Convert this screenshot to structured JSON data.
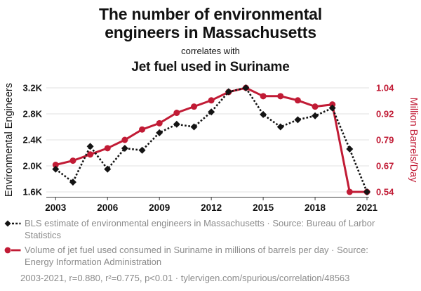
{
  "header": {
    "title": "The number of environmental\nengineers in Massachusetts",
    "connector": "correlates with",
    "subtitle": "Jet fuel used in Suriname"
  },
  "colors": {
    "accent_red": "#c11b35",
    "series_black": "#141414",
    "muted_gray": "#8b8b8b",
    "gridline": "#e8e8e8",
    "axis_line": "#444444"
  },
  "chart_data": {
    "type": "line",
    "x": [
      2003,
      2004,
      2005,
      2006,
      2007,
      2008,
      2009,
      2010,
      2011,
      2012,
      2013,
      2014,
      2015,
      2016,
      2017,
      2018,
      2019,
      2020,
      2021
    ],
    "x_tick_labels": [
      "2003",
      "2006",
      "2009",
      "2012",
      "2015",
      "2018",
      "2021"
    ],
    "left_axis": {
      "label": "Environmental Engineers",
      "tick_labels_top_to_bottom": [
        "3.2K",
        "2.8K",
        "2.4K",
        "2.0K",
        "1.6K"
      ],
      "min": 1.6,
      "max": 3.2
    },
    "right_axis": {
      "label": "Million Barrels/Day",
      "tick_labels_top_to_bottom": [
        "1.04",
        "0.92",
        "0.79",
        "0.67",
        "0.54"
      ],
      "min": 0.54,
      "max": 1.04
    },
    "grid": "horizontal-only",
    "series": [
      {
        "name": "BLS estimate of environmental engineers in Massachusetts",
        "axis": "left",
        "color": "#141414",
        "line": "dashed",
        "marker": "diamond",
        "values": [
          1.95,
          1.75,
          2.3,
          1.95,
          2.27,
          2.24,
          2.51,
          2.64,
          2.6,
          2.83,
          3.14,
          3.2,
          2.79,
          2.6,
          2.71,
          2.77,
          2.89,
          2.26,
          1.6
        ]
      },
      {
        "name": "Volume of jet fuel used consumed in Suriname",
        "axis": "right",
        "color": "#c11b35",
        "line": "solid",
        "marker": "circle",
        "values": [
          0.67,
          0.69,
          0.72,
          0.75,
          0.79,
          0.84,
          0.87,
          0.92,
          0.95,
          0.98,
          1.02,
          1.04,
          1.0,
          1.0,
          0.98,
          0.95,
          0.96,
          0.54,
          0.54
        ]
      }
    ]
  },
  "legend": {
    "items": [
      {
        "text": "BLS estimate of environmental engineers in Massachusetts · Source: Bureau of Larbor Statistics"
      },
      {
        "text": "Volume of jet fuel used consumed in Suriname in millions of barrels per day · Source: Energy Information Administration"
      }
    ]
  },
  "footer": {
    "text": "2003-2021, r=0.880, r²=0.775, p<0.01 · tylervigen.com/spurious/correlation/48563"
  }
}
